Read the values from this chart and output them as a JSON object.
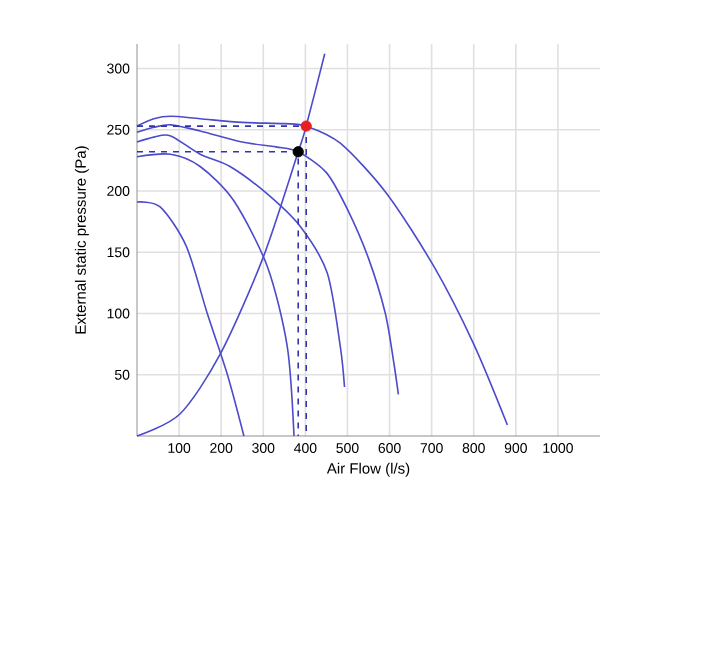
{
  "chart_data": {
    "type": "line",
    "xlabel": "Air Flow (l/s)",
    "ylabel": "External static pressure (Pa)",
    "xlim": [
      0,
      1100
    ],
    "ylim": [
      0,
      320
    ],
    "xticks": [
      100,
      200,
      300,
      400,
      500,
      600,
      700,
      800,
      900,
      1000
    ],
    "yticks": [
      50,
      100,
      150,
      200,
      250,
      300
    ],
    "grid": true,
    "marker": "none",
    "line_style": "solid",
    "series": [
      {
        "color": "#4b4bcc",
        "x": [
          0,
          40,
          80,
          150,
          250,
          350,
          402,
          483,
          593,
          706,
          800,
          880
        ],
        "values": [
          253,
          259,
          261,
          259,
          256,
          255,
          253,
          239,
          198,
          138,
          75,
          9
        ]
      },
      {
        "color": "#4b4bcc",
        "x": [
          0,
          40,
          80,
          150,
          250,
          330,
          383,
          450,
          500,
          550,
          590,
          610,
          621
        ],
        "values": [
          248,
          252,
          254,
          249,
          240,
          236,
          232,
          215,
          185,
          145,
          100,
          60,
          34
        ]
      },
      {
        "color": "#4b4bcc",
        "x": [
          0,
          40,
          80,
          150,
          221,
          308,
          388,
          452,
          483,
          493
        ],
        "values": [
          240,
          244,
          245,
          230,
          220,
          198,
          171,
          133,
          73,
          40
        ]
      },
      {
        "color": "#4b4bcc",
        "x": [
          0,
          80,
          150,
          230,
          310,
          357,
          373
        ],
        "values": [
          228,
          230,
          220,
          192,
          138,
          73,
          0
        ]
      },
      {
        "color": "#4b4bcc",
        "x": [
          0,
          55,
          117,
          167,
          214,
          254
        ],
        "values": [
          191,
          187,
          155,
          100,
          51,
          0
        ]
      },
      {
        "color": "#4b4bcc",
        "x": [
          0,
          102,
          198,
          300,
          383,
          402,
          446
        ],
        "values": [
          0,
          18,
          67,
          146,
          232,
          253,
          312
        ]
      },
      {
        "color": "#3333aa",
        "line_style": "dashed",
        "x": [
          0,
          402,
          402
        ],
        "values": [
          253,
          253,
          0
        ]
      },
      {
        "color": "#3333aa",
        "line_style": "dashed",
        "x": [
          0,
          383,
          383
        ],
        "values": [
          232,
          232,
          0
        ]
      },
      {
        "type": "scatter",
        "marker": "circle",
        "color": "#e82020",
        "x": [
          402
        ],
        "values": [
          253
        ]
      },
      {
        "type": "scatter",
        "marker": "circle",
        "color": "#000000",
        "x": [
          383
        ],
        "values": [
          232
        ]
      }
    ]
  }
}
